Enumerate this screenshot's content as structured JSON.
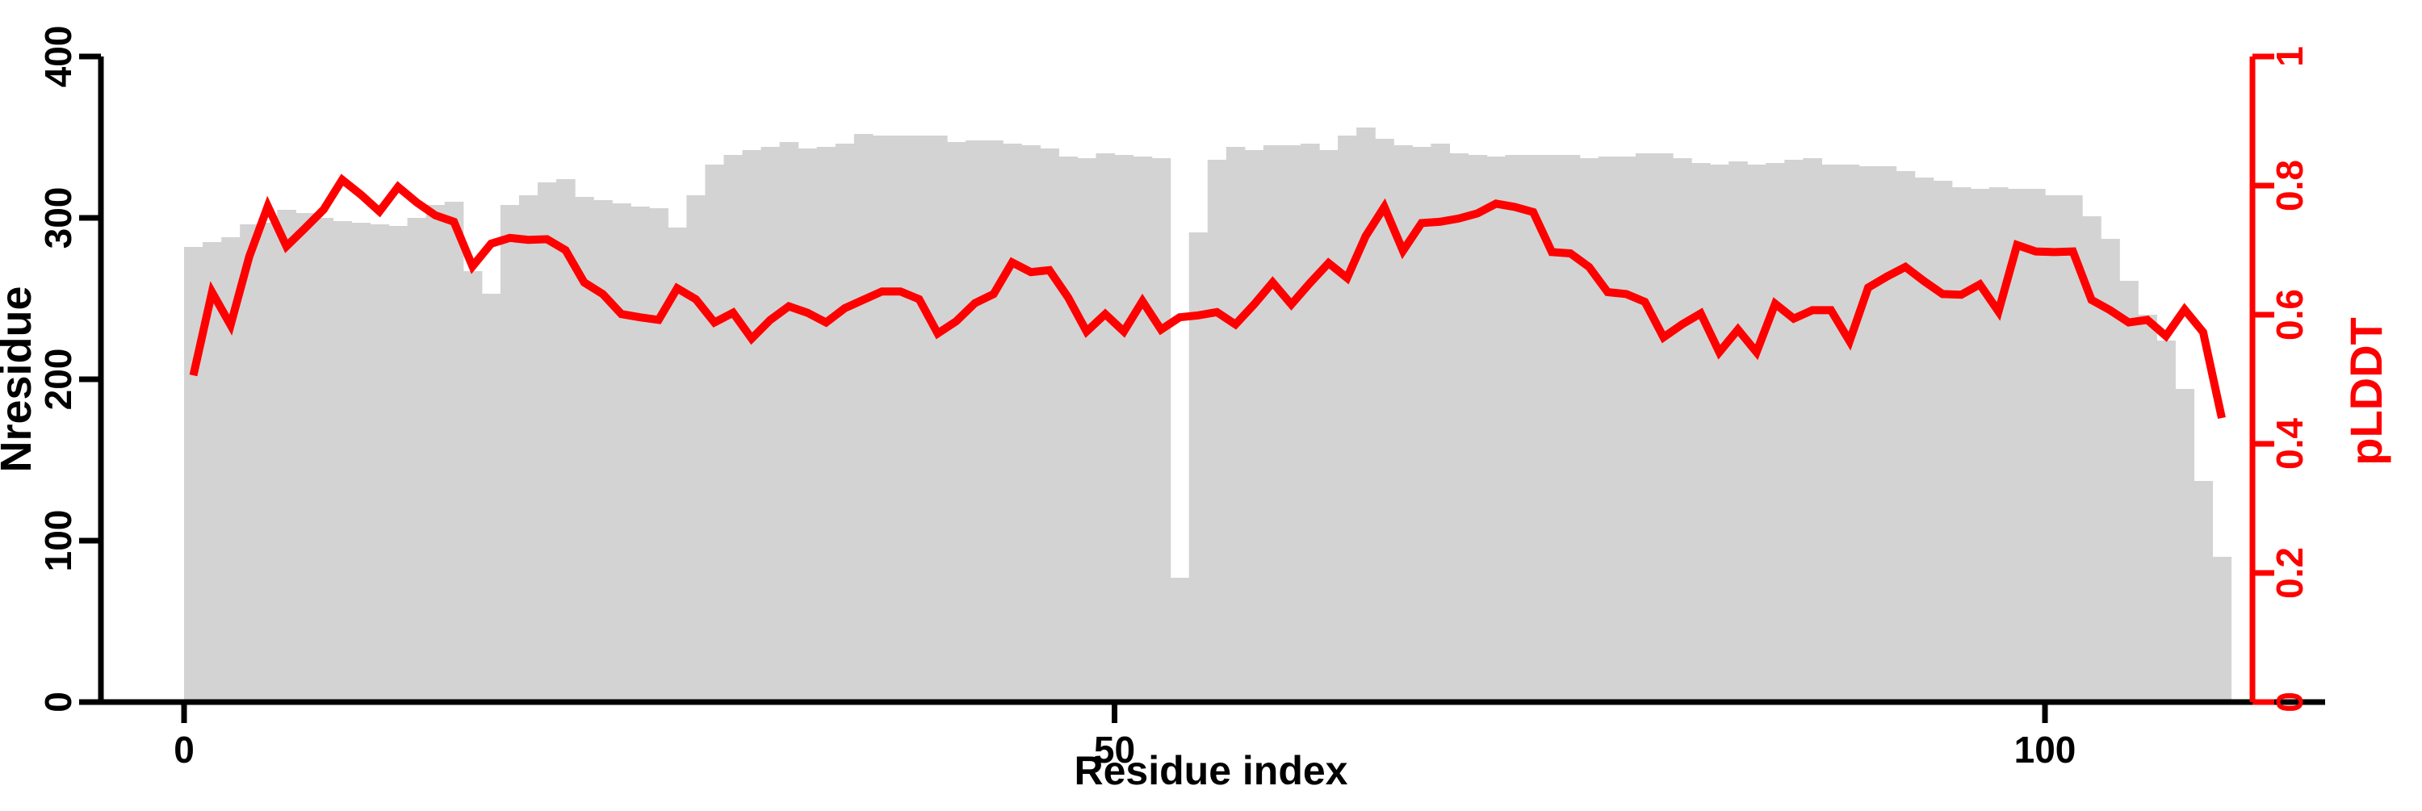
{
  "chart_data": {
    "type": "bar",
    "subtype": "dual-axis bar+line",
    "title": "",
    "xlabel": "Residue index",
    "ylabel_left": "Nresidue",
    "ylabel_right": "pLDDT",
    "x_start_index": 0,
    "xticks": [
      0,
      50,
      100
    ],
    "xtick_labels": [
      "0",
      "50",
      "100"
    ],
    "yticks_left": [
      0,
      100,
      200,
      300,
      400
    ],
    "ytick_labels_left": [
      "0",
      "100",
      "200",
      "300",
      "400"
    ],
    "yticks_right": [
      0,
      0.2,
      0.4,
      0.6,
      0.8,
      1
    ],
    "ytick_labels_right": [
      "0",
      "0.2",
      "0.4",
      "0.6",
      "0.8",
      "1"
    ],
    "ylim_left": [
      0,
      400
    ],
    "ylim_right": [
      0,
      1
    ],
    "grid": false,
    "legend": "none",
    "colors": {
      "bar_fill": "#d3d3d3",
      "line": "#ff0000",
      "axis_left": "#000000",
      "axis_right": "#ff0000",
      "background": "#ffffff"
    },
    "series": [
      {
        "name": "Nresidue",
        "type": "bar",
        "axis": "left",
        "values": [
          282,
          285,
          288,
          296,
          297,
          305,
          303,
          300,
          298,
          297,
          296,
          295,
          300,
          308,
          310,
          267,
          253,
          308,
          314,
          322,
          324,
          313,
          311,
          309,
          307,
          306,
          294,
          314,
          333,
          339,
          342,
          344,
          347,
          343,
          344,
          346,
          352,
          351,
          351,
          351,
          351,
          347,
          348,
          348,
          346,
          345,
          343,
          338,
          337,
          340,
          339,
          338,
          337,
          77,
          291,
          336,
          344,
          342,
          345,
          345,
          346,
          342,
          351,
          356,
          349,
          345,
          344,
          346,
          340,
          339,
          338,
          339,
          339,
          339,
          339,
          337,
          338,
          338,
          340,
          340,
          337,
          334,
          333,
          335,
          333,
          334,
          336,
          337,
          333,
          333,
          332,
          332,
          329,
          325,
          323,
          319,
          318,
          319,
          318,
          318,
          314,
          314,
          301,
          287,
          261,
          240,
          224,
          194,
          137,
          90
        ]
      },
      {
        "name": "pLDDT",
        "type": "line",
        "axis": "right",
        "values": [
          0.506,
          0.635,
          0.584,
          0.69,
          0.768,
          0.706,
          0.734,
          0.763,
          0.809,
          0.786,
          0.76,
          0.798,
          0.774,
          0.754,
          0.744,
          0.675,
          0.71,
          0.719,
          0.716,
          0.717,
          0.7,
          0.65,
          0.632,
          0.601,
          0.596,
          0.592,
          0.641,
          0.624,
          0.588,
          0.603,
          0.563,
          0.592,
          0.613,
          0.603,
          0.588,
          0.61,
          0.623,
          0.636,
          0.636,
          0.624,
          0.571,
          0.59,
          0.618,
          0.632,
          0.681,
          0.666,
          0.669,
          0.627,
          0.574,
          0.601,
          0.574,
          0.621,
          0.577,
          0.596,
          0.599,
          0.604,
          0.585,
          0.616,
          0.65,
          0.616,
          0.649,
          0.68,
          0.657,
          0.722,
          0.767,
          0.699,
          0.742,
          0.744,
          0.749,
          0.757,
          0.772,
          0.767,
          0.759,
          0.697,
          0.695,
          0.674,
          0.635,
          0.632,
          0.62,
          0.565,
          0.585,
          0.602,
          0.542,
          0.577,
          0.542,
          0.617,
          0.594,
          0.607,
          0.607,
          0.559,
          0.642,
          0.659,
          0.674,
          0.652,
          0.632,
          0.631,
          0.647,
          0.605,
          0.708,
          0.698,
          0.697,
          0.698,
          0.623,
          0.607,
          0.588,
          0.592,
          0.567,
          0.608,
          0.573,
          0.44
        ]
      }
    ]
  }
}
